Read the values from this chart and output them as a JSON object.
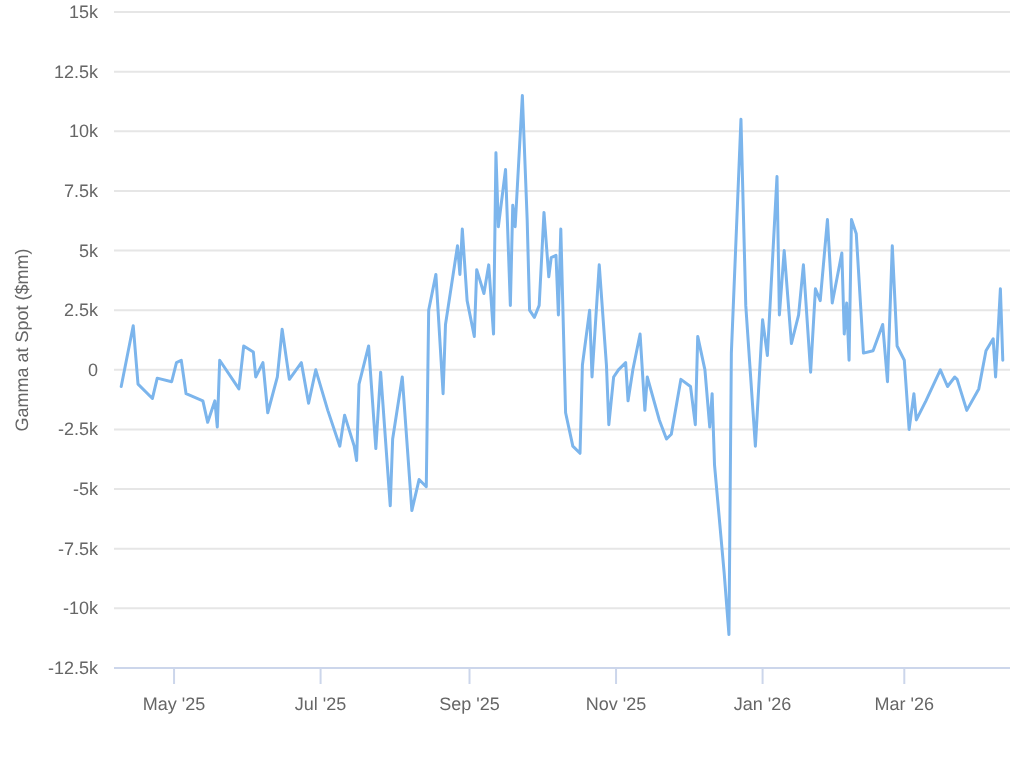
{
  "chart_data": {
    "type": "line",
    "ylabel": "Gamma at Spot ($mm)",
    "x": [
      "2025-04-09",
      "2025-04-14",
      "2025-04-16",
      "2025-04-22",
      "2025-04-24",
      "2025-04-30",
      "2025-05-02",
      "2025-05-04",
      "2025-05-06",
      "2025-05-13",
      "2025-05-15",
      "2025-05-18",
      "2025-05-19",
      "2025-05-20",
      "2025-05-28",
      "2025-05-30",
      "2025-06-03",
      "2025-06-04",
      "2025-06-07",
      "2025-06-09",
      "2025-06-13",
      "2025-06-15",
      "2025-06-18",
      "2025-06-23",
      "2025-06-26",
      "2025-06-29",
      "2025-07-04",
      "2025-07-09",
      "2025-07-11",
      "2025-07-15",
      "2025-07-16",
      "2025-07-17",
      "2025-07-21",
      "2025-07-24",
      "2025-07-26",
      "2025-07-30",
      "2025-07-31",
      "2025-08-04",
      "2025-08-08",
      "2025-08-11",
      "2025-08-14",
      "2025-08-15",
      "2025-08-18",
      "2025-08-21",
      "2025-08-22",
      "2025-08-27",
      "2025-08-28",
      "2025-08-29",
      "2025-08-31",
      "2025-09-03",
      "2025-09-04",
      "2025-09-07",
      "2025-09-09",
      "2025-09-11",
      "2025-09-12",
      "2025-09-13",
      "2025-09-16",
      "2025-09-18",
      "2025-09-19",
      "2025-09-20",
      "2025-09-23",
      "2025-09-25",
      "2025-09-26",
      "2025-09-28",
      "2025-09-30",
      "2025-10-02",
      "2025-10-04",
      "2025-10-05",
      "2025-10-07",
      "2025-10-08",
      "2025-10-09",
      "2025-10-11",
      "2025-10-14",
      "2025-10-17",
      "2025-10-18",
      "2025-10-21",
      "2025-10-22",
      "2025-10-25",
      "2025-10-28",
      "2025-10-29",
      "2025-10-31",
      "2025-11-02",
      "2025-11-05",
      "2025-11-06",
      "2025-11-08",
      "2025-11-11",
      "2025-11-13",
      "2025-11-14",
      "2025-11-19",
      "2025-11-22",
      "2025-11-24",
      "2025-11-28",
      "2025-12-02",
      "2025-12-04",
      "2025-12-05",
      "2025-12-08",
      "2025-12-10",
      "2025-12-11",
      "2025-12-12",
      "2025-12-16",
      "2025-12-18",
      "2025-12-19",
      "2025-12-23",
      "2025-12-25",
      "2025-12-29",
      "2026-01-01",
      "2026-01-03",
      "2026-01-07",
      "2026-01-08",
      "2026-01-10",
      "2026-01-13",
      "2026-01-16",
      "2026-01-18",
      "2026-01-21",
      "2026-01-23",
      "2026-01-25",
      "2026-01-28",
      "2026-01-30",
      "2026-02-03",
      "2026-02-04",
      "2026-02-05",
      "2026-02-06",
      "2026-02-07",
      "2026-02-09",
      "2026-02-12",
      "2026-02-16",
      "2026-02-20",
      "2026-02-22",
      "2026-02-24",
      "2026-02-26",
      "2026-03-01",
      "2026-03-03",
      "2026-03-05",
      "2026-03-06",
      "2026-03-10",
      "2026-03-16",
      "2026-03-19",
      "2026-03-22",
      "2026-03-23",
      "2026-03-27",
      "2026-04-01",
      "2026-04-04",
      "2026-04-07",
      "2026-04-08",
      "2026-04-10",
      "2026-04-11"
    ],
    "series": [
      {
        "color": "#7cb5ec",
        "values": [
          -700,
          1850,
          -600,
          -1200,
          -350,
          -500,
          300,
          400,
          -1000,
          -1300,
          -2200,
          -1300,
          -2400,
          400,
          -800,
          1000,
          750,
          -300,
          300,
          -1800,
          -300,
          1700,
          -400,
          300,
          -1400,
          0,
          -1700,
          -3200,
          -1900,
          -3200,
          -3800,
          -600,
          1000,
          -3300,
          -100,
          -5700,
          -2900,
          -300,
          -5900,
          -4600,
          -4900,
          2500,
          4000,
          -1000,
          1900,
          5200,
          4000,
          5900,
          2900,
          1400,
          4200,
          3200,
          4400,
          1500,
          9100,
          6000,
          8400,
          2700,
          6900,
          6000,
          11500,
          6300,
          2500,
          2200,
          2700,
          6600,
          3900,
          4700,
          4800,
          2300,
          5900,
          -1800,
          -3200,
          -3500,
          200,
          2500,
          -300,
          4400,
          200,
          -2300,
          -300,
          0,
          300,
          -1300,
          0,
          1500,
          -1700,
          -300,
          -2100,
          -2900,
          -2700,
          -400,
          -700,
          -2300,
          1400,
          0,
          -2400,
          -1000,
          -4000,
          -8500,
          -11100,
          700,
          10500,
          2700,
          -3200,
          2100,
          600,
          8100,
          2300,
          5000,
          1100,
          2300,
          4400,
          -100,
          3400,
          2900,
          6300,
          2800,
          4900,
          1500,
          2800,
          400,
          6300,
          5700,
          700,
          800,
          1900,
          -500,
          5200,
          1000,
          400,
          -2500,
          -1000,
          -2100,
          -1300,
          0,
          -700,
          -300,
          -400,
          -1700,
          -800,
          800,
          1300,
          -300,
          3400,
          400
        ]
      }
    ],
    "xlim": [
      "2025-04-06",
      "2026-04-14"
    ],
    "xticks": [
      {
        "value": "2025-05-01",
        "label": "May '25"
      },
      {
        "value": "2025-07-01",
        "label": "Jul '25"
      },
      {
        "value": "2025-09-01",
        "label": "Sep '25"
      },
      {
        "value": "2025-11-01",
        "label": "Nov '25"
      },
      {
        "value": "2026-01-01",
        "label": "Jan '26"
      },
      {
        "value": "2026-03-01",
        "label": "Mar '26"
      }
    ],
    "ylim": [
      -12500,
      15000
    ],
    "yticks": [
      {
        "value": -12500,
        "label": "-12.5k"
      },
      {
        "value": -10000,
        "label": "-10k"
      },
      {
        "value": -7500,
        "label": "-7.5k"
      },
      {
        "value": -5000,
        "label": "-5k"
      },
      {
        "value": -2500,
        "label": "-2.5k"
      },
      0,
      {
        "value": 2500,
        "label": "2.5k"
      },
      {
        "value": 5000,
        "label": "5k"
      },
      {
        "value": 7500,
        "label": "7.5k"
      },
      {
        "value": 10000,
        "label": "10k"
      },
      {
        "value": 12500,
        "label": "12.5k"
      },
      {
        "value": 15000,
        "label": "15k"
      }
    ],
    "grid": "y",
    "marker": "none",
    "line_style": "solid"
  }
}
